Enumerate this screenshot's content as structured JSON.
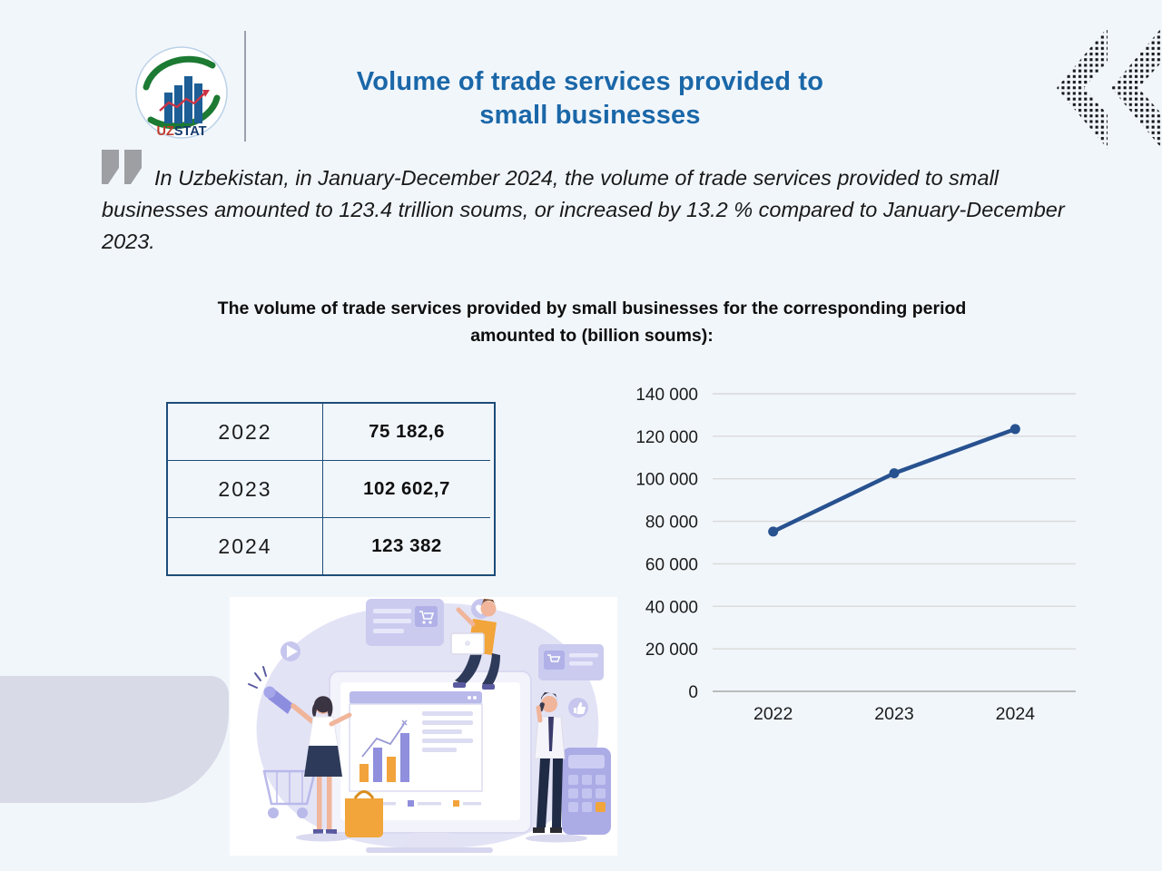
{
  "page": {
    "background": "#f1f6fb",
    "accent_blue": "#1a67a8",
    "table_border_blue": "#1d4c79"
  },
  "header": {
    "title_line1": "Volume of trade services provided to",
    "title_line2": "small businesses",
    "logo": {
      "text_uz": "UZ",
      "text_stat": "STAT",
      "uz_color": "#c0392b",
      "stat_color": "#123a6d",
      "swoosh_green": "#1c7a33",
      "bar_blue": "#1d5e96"
    }
  },
  "quote": {
    "text": "In Uzbekistan, in January-December 2024, the volume of trade services provided to small businesses amounted to 123.4 trillion soums, or increased by 13.2 % compared to January-December 2023."
  },
  "subtitle": "The volume of trade services provided by small businesses for the corresponding period amounted to (billion soums):",
  "table": {
    "rows": [
      {
        "year": "2022",
        "value": "75 182,6"
      },
      {
        "year": "2023",
        "value": "102 602,7"
      },
      {
        "year": "2024",
        "value": "123 382"
      }
    ]
  },
  "chart_data": {
    "type": "line",
    "categories": [
      "2022",
      "2023",
      "2024"
    ],
    "values": [
      75182.6,
      102602.7,
      123382
    ],
    "y_ticks": [
      "140 000",
      "120 000",
      "100 000",
      "80 000",
      "60 000",
      "40 000",
      "20 000",
      "0"
    ],
    "ylim": [
      0,
      140000
    ],
    "xlabel": "",
    "ylabel": "",
    "grid": true,
    "legend": "none",
    "line_color": "#27518f"
  }
}
